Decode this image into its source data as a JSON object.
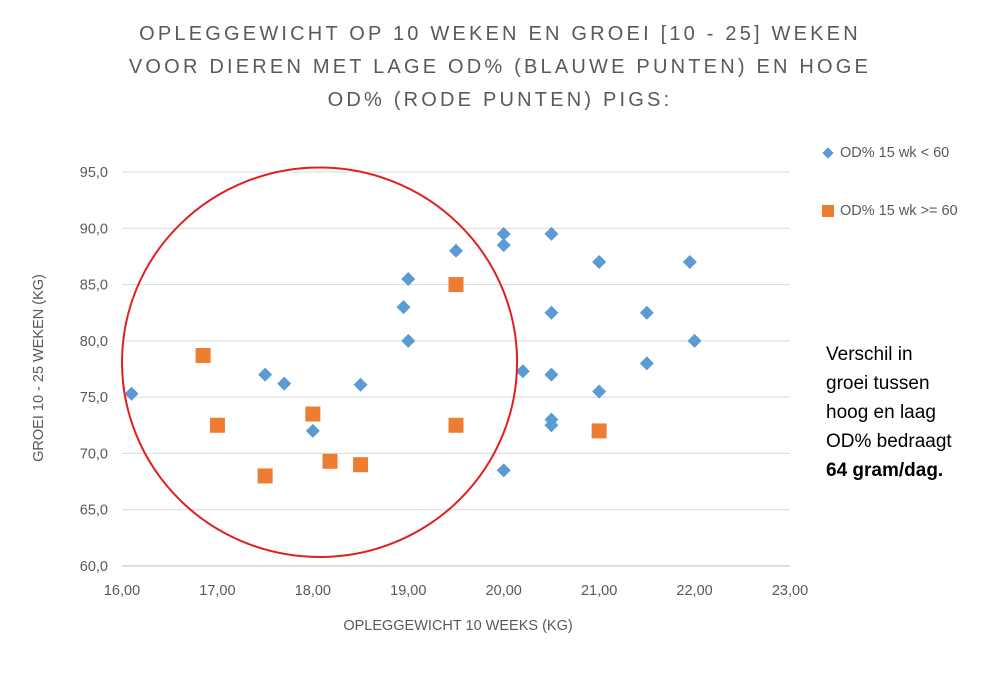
{
  "title_lines": [
    "OPLEGGEWICHT OP 10 WEKEN EN GROEI [10 - 25] WEKEN",
    "VOOR DIEREN MET LAGE OD% (BLAUWE PUNTEN) EN  HOGE",
    "OD% (RODE PUNTEN) PIGS:"
  ],
  "annotation": {
    "lines": [
      "Verschil in",
      "groei tussen",
      "hoog en laag",
      "OD% bedraagt"
    ],
    "bold": "64 gram/dag."
  },
  "colors": {
    "blue": "#5b9bd5",
    "orange": "#ed7d31",
    "circle": "#e02020",
    "grid": "#d9d9d9"
  },
  "chart_data": {
    "type": "scatter",
    "title": "OPLEGGEWICHT OP 10 WEKEN EN GROEI [10 - 25] WEKEN VOOR DIEREN MET LAGE OD% (BLAUWE PUNTEN) EN  HOGE OD% (RODE PUNTEN) PIGS:",
    "xlabel": "OPLEGGEWICHT 10 WEEKS (KG)",
    "ylabel": "GROEI 10 - 25 WEKEN (KG)",
    "xlim": [
      16,
      23
    ],
    "ylim": [
      60,
      95
    ],
    "x_ticks": [
      "16,00",
      "17,00",
      "18,00",
      "19,00",
      "20,00",
      "21,00",
      "22,00",
      "23,00"
    ],
    "y_ticks": [
      "60,0",
      "65,0",
      "70,0",
      "75,0",
      "80,0",
      "85,0",
      "90,0",
      "95,0"
    ],
    "grid": "horizontal",
    "legend_position": "top-right",
    "series": [
      {
        "name": "OD% 15 wk < 60",
        "marker": "diamond",
        "points": [
          [
            16.1,
            75.3
          ],
          [
            17.5,
            77.0
          ],
          [
            17.7,
            76.2
          ],
          [
            18.0,
            72.0
          ],
          [
            18.5,
            76.1
          ],
          [
            18.95,
            83.0
          ],
          [
            19.0,
            85.5
          ],
          [
            19.0,
            80.0
          ],
          [
            19.5,
            88.0
          ],
          [
            20.0,
            89.5
          ],
          [
            20.0,
            88.5
          ],
          [
            20.0,
            68.5
          ],
          [
            20.2,
            77.3
          ],
          [
            20.5,
            89.5
          ],
          [
            20.5,
            82.5
          ],
          [
            20.5,
            77.0
          ],
          [
            20.5,
            73.0
          ],
          [
            20.5,
            72.5
          ],
          [
            21.0,
            87.0
          ],
          [
            21.0,
            75.5
          ],
          [
            21.5,
            82.5
          ],
          [
            21.5,
            78.0
          ],
          [
            21.95,
            87.0
          ],
          [
            22.0,
            80.0
          ]
        ]
      },
      {
        "name": "OD% 15 wk >= 60",
        "marker": "square",
        "points": [
          [
            16.85,
            78.7
          ],
          [
            17.0,
            72.5
          ],
          [
            17.5,
            68.0
          ],
          [
            18.0,
            73.5
          ],
          [
            18.18,
            69.3
          ],
          [
            18.5,
            69.0
          ],
          [
            19.5,
            85.0
          ],
          [
            19.5,
            72.5
          ],
          [
            21.0,
            72.0
          ]
        ]
      }
    ],
    "highlight_ellipse": {
      "center": [
        18.07,
        78.1
      ],
      "radius_x": 2.07,
      "radius_y": 17.3
    }
  }
}
